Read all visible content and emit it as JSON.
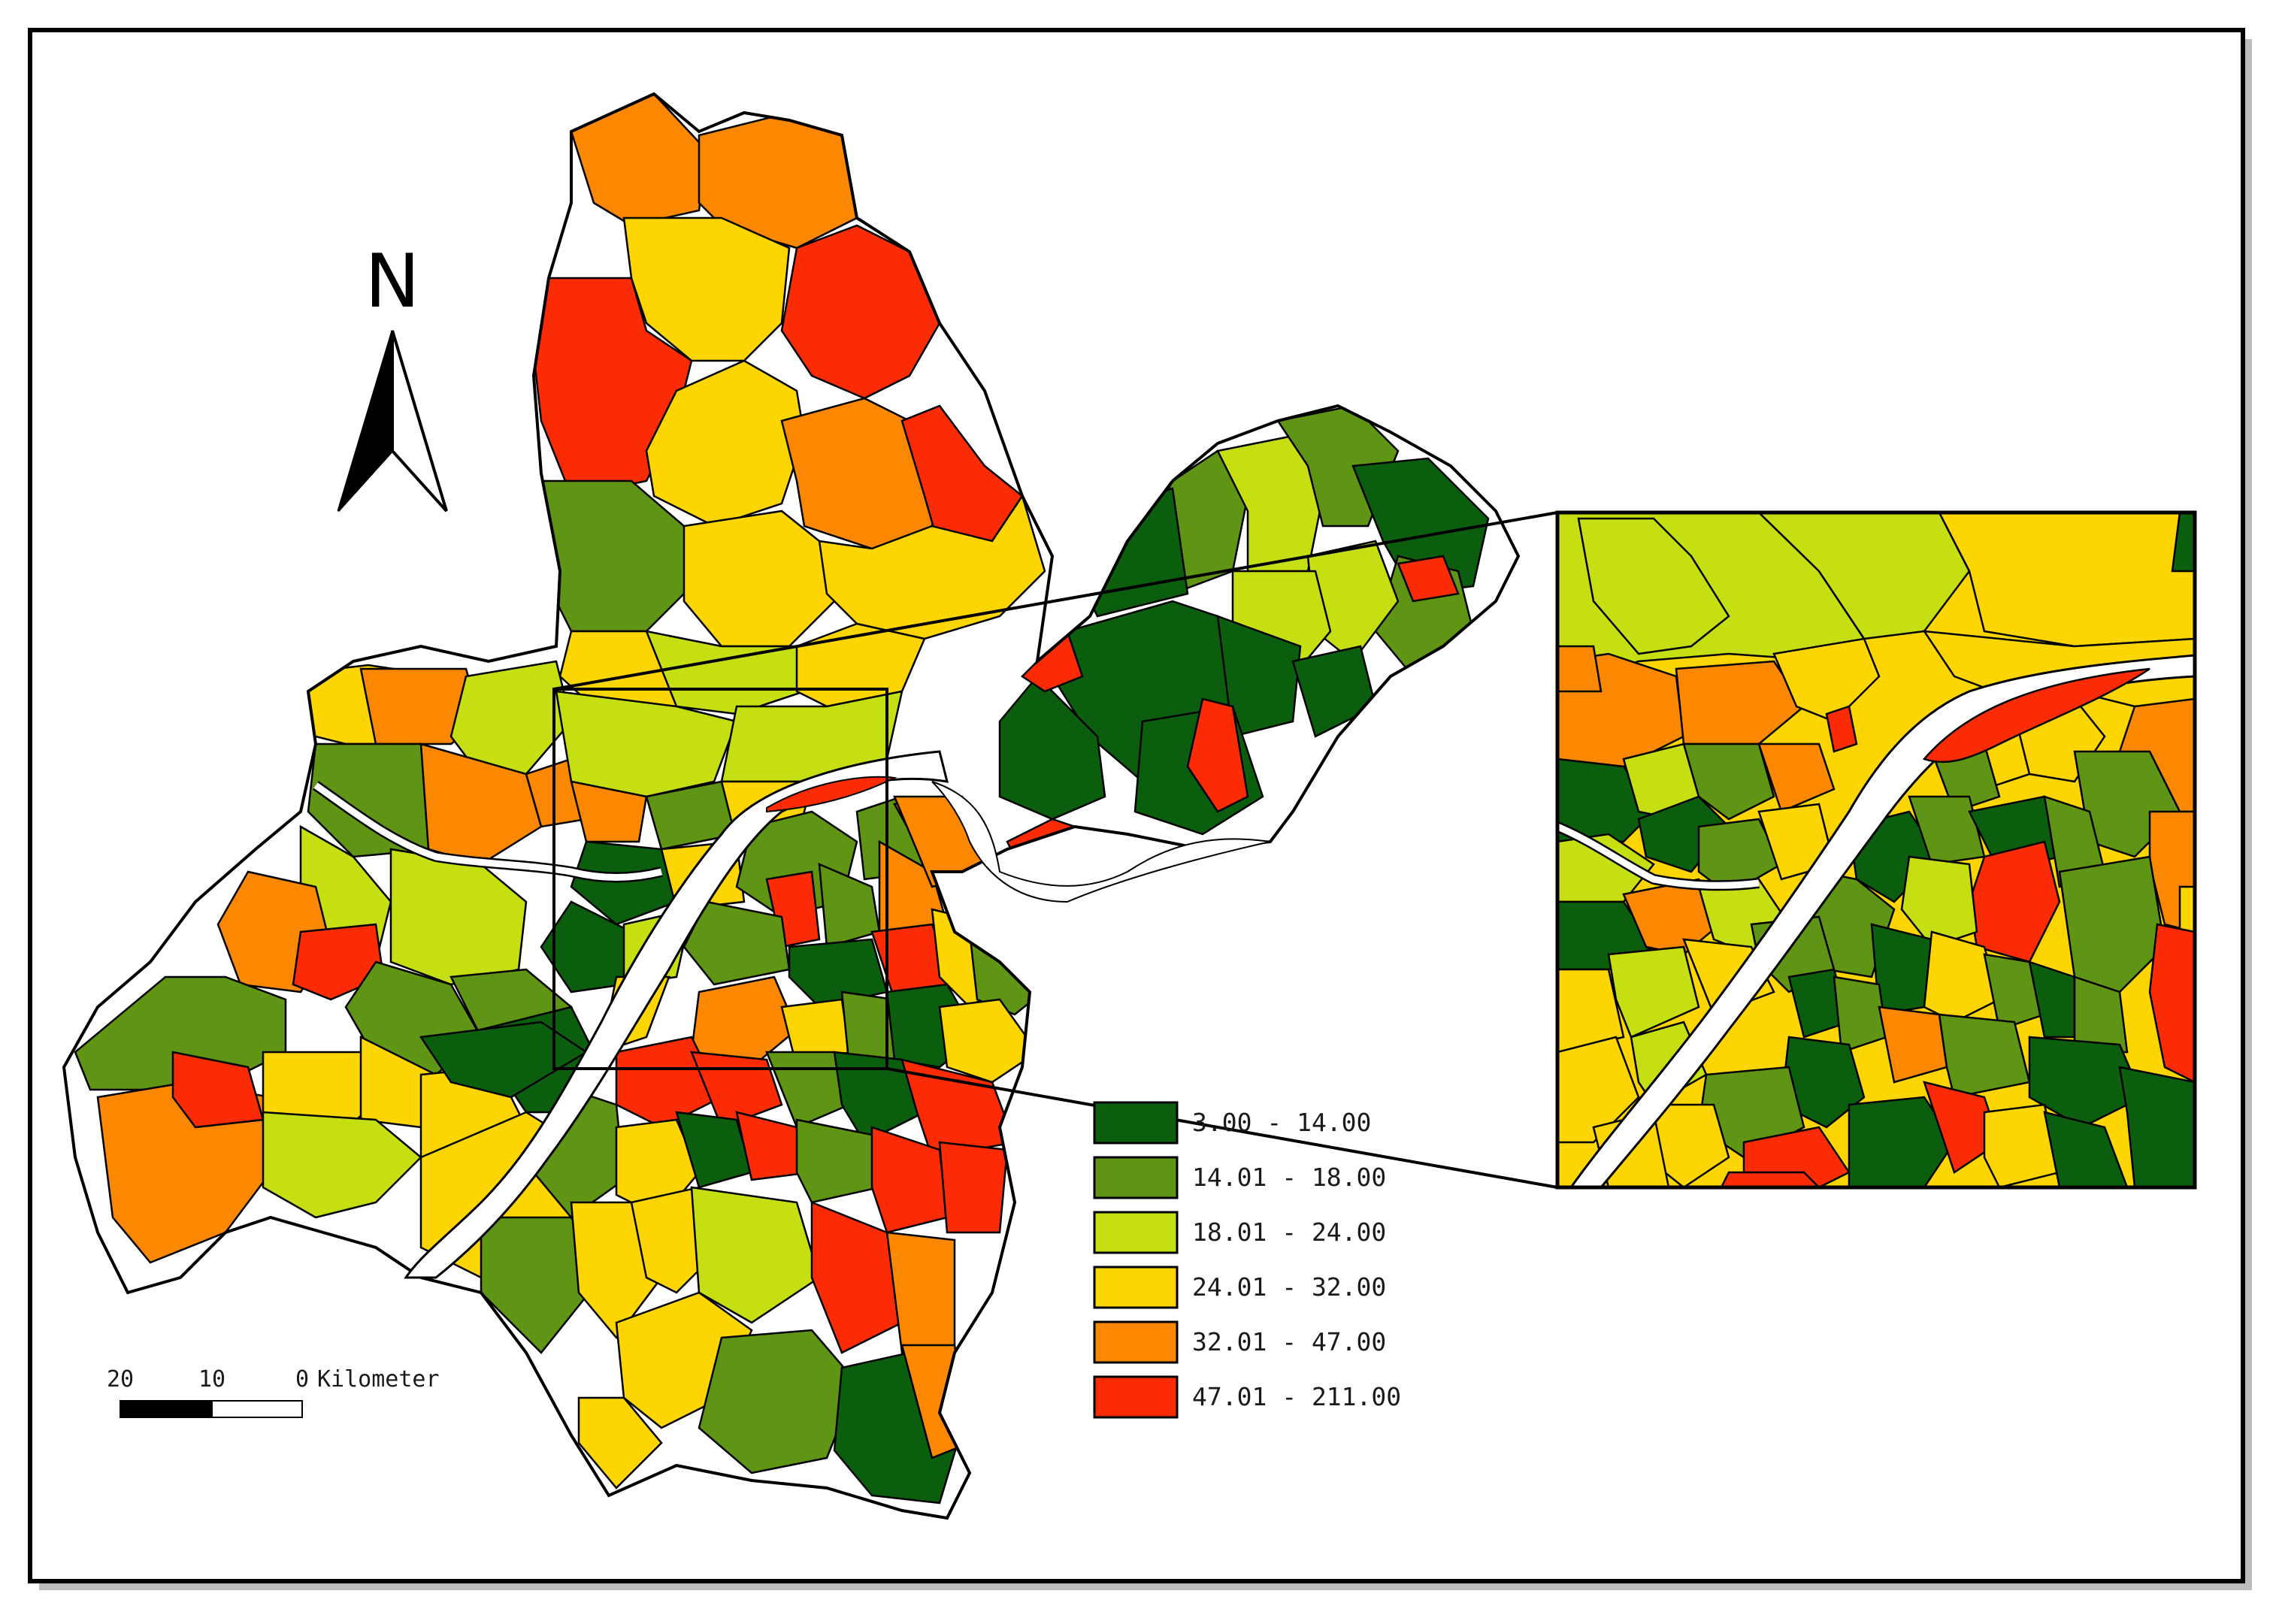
{
  "north": {
    "label": "N"
  },
  "scale_bar": {
    "ticks": [
      "20",
      "10",
      "0"
    ],
    "unit": "Kilometer"
  },
  "legend": {
    "classes": [
      {
        "label": "3.00 - 14.00",
        "color": "#0b5e0e"
      },
      {
        "label": "14.01 - 18.00",
        "color": "#5f9415"
      },
      {
        "label": "18.01 - 24.00",
        "color": "#c6df12"
      },
      {
        "label": "24.01 - 32.00",
        "color": "#fdd500"
      },
      {
        "label": "32.01 - 47.00",
        "color": "#fb8800"
      },
      {
        "label": "47.01 - 211.00",
        "color": "#fb2b06"
      }
    ]
  },
  "colors": {
    "river": "#ffffff",
    "boundary": "#000000",
    "frame": "#000000"
  }
}
